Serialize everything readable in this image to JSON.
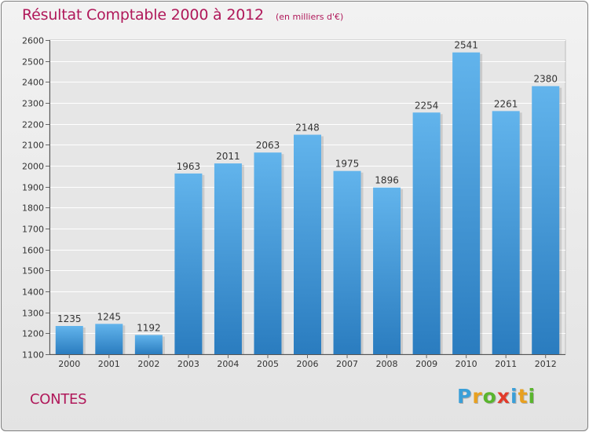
{
  "chart_data": {
    "type": "bar",
    "title": "Résultat Comptable 2000 à 2012",
    "subtitle": "(en milliers d'€)",
    "categories": [
      "2000",
      "2001",
      "2002",
      "2003",
      "2004",
      "2005",
      "2006",
      "2007",
      "2008",
      "2009",
      "2010",
      "2011",
      "2012"
    ],
    "values": [
      1235,
      1245,
      1192,
      1963,
      2011,
      2063,
      2148,
      1975,
      1896,
      2254,
      2541,
      2261,
      2380
    ],
    "ylim": [
      1100,
      2600
    ],
    "yticks": [
      1100,
      1200,
      1300,
      1400,
      1500,
      1600,
      1700,
      1800,
      1900,
      2000,
      2100,
      2200,
      2300,
      2400,
      2500,
      2600
    ],
    "grid": true,
    "xlabel": "",
    "ylabel": ""
  },
  "place": "CONTES",
  "brand": {
    "letters": [
      "P",
      "r",
      "o",
      "x",
      "i",
      "t",
      "i"
    ],
    "colors": [
      "#3a9fd8",
      "#e8a020",
      "#5ab52e",
      "#e23a2a",
      "#3a9fd8",
      "#e8a020",
      "#5ab52e"
    ]
  },
  "colors": {
    "title": "#b0185a",
    "bar_top": "#62b4ec",
    "bar_bottom": "#2a7cbf"
  }
}
